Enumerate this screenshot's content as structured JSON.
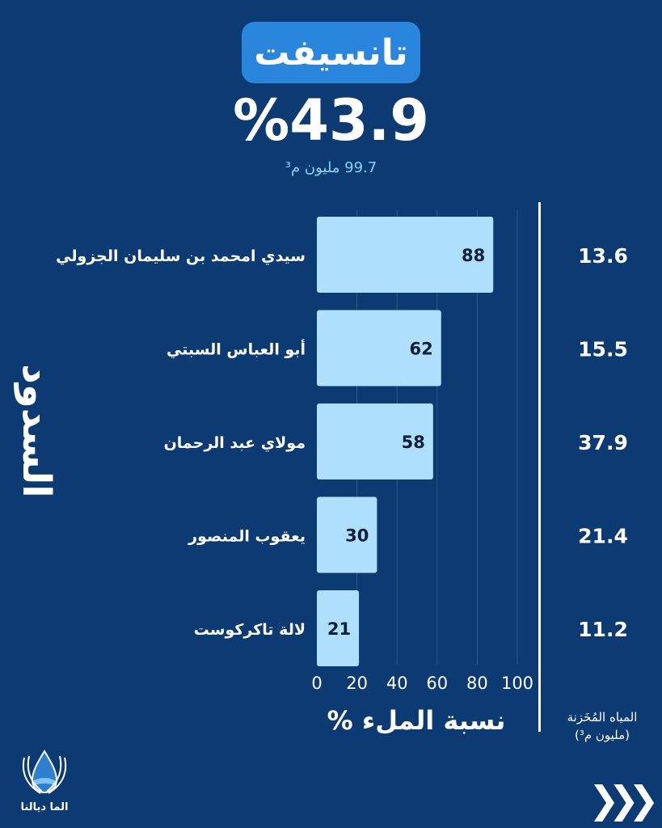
{
  "header": {
    "title": "تانسيفت",
    "percentage": "%43.9",
    "volume": "99.7 مليون م³"
  },
  "colors": {
    "background": "#0c3a72",
    "bar": "#aee0fd",
    "pill": "#2a86dc"
  },
  "chart_data": {
    "type": "bar",
    "orientation": "horizontal",
    "categories": [
      "سيدي امحمد بن سليمان الجزولي",
      "أبو العباس السبتي",
      "مولاي عبد الرحمان",
      "يعقوب المنصور",
      "لالة تاكركوست"
    ],
    "values": [
      88,
      62,
      58,
      30,
      21
    ],
    "data_labels": [
      "88",
      "62",
      "58",
      "30",
      "21"
    ],
    "stored_water": [
      "13.6",
      "15.5",
      "37.9",
      "21.4",
      "11.2"
    ],
    "stored_water_label": "المياه المُخَزنة (مليون م³)",
    "xlabel": "نسبة الملء %",
    "ylabel": "السدود",
    "xlim": [
      0,
      100
    ],
    "xticks": [
      "0",
      "20",
      "40",
      "60",
      "80",
      "100"
    ],
    "grid": true
  },
  "footer": {
    "logo_text": "الما ديالنا",
    "next_icon": "triple-chevron-right-icon"
  }
}
